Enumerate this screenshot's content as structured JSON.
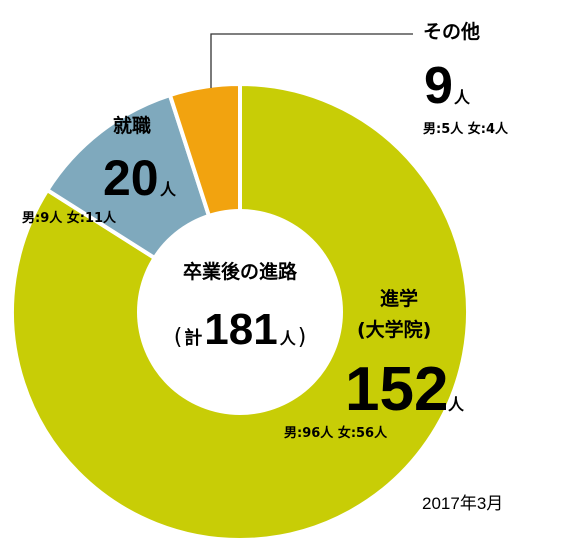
{
  "chart_data": {
    "type": "pie",
    "title": "卒業後の進路",
    "total": {
      "prefix": "計",
      "value": 181,
      "unit": "人",
      "open_paren": "(",
      "close_paren": ")"
    },
    "slices": [
      {
        "key": "shingaku",
        "name": "進学",
        "subname": "(大学院)",
        "value": 152,
        "unit": "人",
        "detail": "男:96人 女:56人",
        "color": "#c8cd06"
      },
      {
        "key": "shushoku",
        "name": "就職",
        "value": 20,
        "unit": "人",
        "detail": "男:9人 女:11人",
        "color": "#7fa9bd"
      },
      {
        "key": "sonota",
        "name": "その他",
        "value": 9,
        "unit": "人",
        "detail": "男:5人 女:4人",
        "color": "#f2a30f"
      }
    ],
    "date": "2017年3月"
  }
}
